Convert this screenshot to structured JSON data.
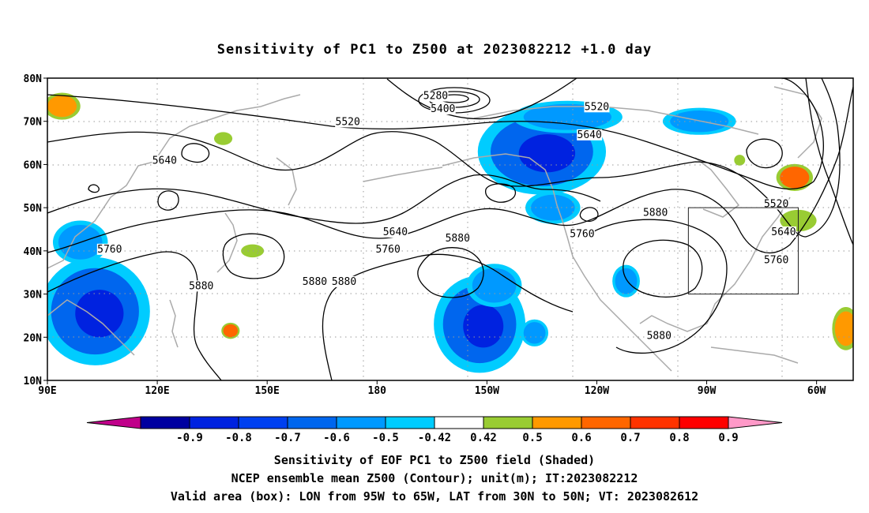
{
  "title": "Sensitivity of PC1 to Z500 at 2023082212 +1.0 day",
  "map": {
    "lon_range": [
      90,
      310
    ],
    "lat_range": [
      10,
      80
    ],
    "lon_ticks": [
      "90E",
      "120E",
      "150E",
      "180",
      "150W",
      "120W",
      "90W",
      "60W"
    ],
    "lat_ticks": [
      "80N",
      "70N",
      "60N",
      "50N",
      "40N",
      "30N",
      "20N",
      "10N"
    ],
    "grid": "dotted, every 30 deg lon and 10 deg lat",
    "valid_box": {
      "lon_west": -95,
      "lon_east": -65,
      "lat_south": 30,
      "lat_north": 50
    }
  },
  "contours": {
    "labels": [
      {
        "text": "5280",
        "lon": 196,
        "lat": 75.5
      },
      {
        "text": "5400",
        "lon": 198,
        "lat": 72.5
      },
      {
        "text": "5520",
        "lon": 172,
        "lat": 69.5
      },
      {
        "text": "5520",
        "lon": 240,
        "lat": 73
      },
      {
        "text": "5640",
        "lon": 238,
        "lat": 66.5
      },
      {
        "text": "5640",
        "lon": 122,
        "lat": 60.5
      },
      {
        "text": "5640",
        "lon": 185,
        "lat": 44
      },
      {
        "text": "5760",
        "lon": 183,
        "lat": 40
      },
      {
        "text": "5760",
        "lon": 107,
        "lat": 40
      },
      {
        "text": "5760",
        "lon": 236,
        "lat": 43.5
      },
      {
        "text": "5880",
        "lon": 202,
        "lat": 42.5
      },
      {
        "text": "5880",
        "lon": 256,
        "lat": 48.5
      },
      {
        "text": "5880",
        "lon": 163,
        "lat": 32.5
      },
      {
        "text": "5880",
        "lon": 171,
        "lat": 32.5
      },
      {
        "text": "5880",
        "lon": 132,
        "lat": 31.5
      },
      {
        "text": "5880",
        "lon": 257,
        "lat": 20
      },
      {
        "text": "5520",
        "lon": 289,
        "lat": 50.5
      },
      {
        "text": "5640",
        "lon": 291,
        "lat": 44
      },
      {
        "text": "5760",
        "lon": 289,
        "lat": 37.5
      }
    ]
  },
  "shading": {
    "negative": [
      {
        "lon": 225,
        "lat": 63,
        "rx": 14,
        "ry": 8,
        "level": -0.6
      },
      {
        "lon": 232,
        "lat": 71,
        "rx": 12,
        "ry": 3,
        "level": -0.5
      },
      {
        "lon": 268,
        "lat": 70,
        "rx": 8,
        "ry": 2.5,
        "level": -0.5
      },
      {
        "lon": 208,
        "lat": 23,
        "rx": 10,
        "ry": 9,
        "level": -0.6
      },
      {
        "lon": 212,
        "lat": 32,
        "rx": 6,
        "ry": 4,
        "level": -0.5
      },
      {
        "lon": 103,
        "lat": 26,
        "rx": 12,
        "ry": 10,
        "level": -0.6
      },
      {
        "lon": 99,
        "lat": 42,
        "rx": 6,
        "ry": 4,
        "level": -0.5
      },
      {
        "lon": 248,
        "lat": 33,
        "rx": 3,
        "ry": 3,
        "level": -0.5
      },
      {
        "lon": 228,
        "lat": 50,
        "rx": 6,
        "ry": 3,
        "level": -0.5
      },
      {
        "lon": 223,
        "lat": 21,
        "rx": 3,
        "ry": 2.5,
        "level": -0.5
      }
    ],
    "positive": [
      {
        "lon": 94,
        "lat": 73.5,
        "rx": 4,
        "ry": 2.5,
        "level": 0.6
      },
      {
        "lon": 294,
        "lat": 57,
        "rx": 4,
        "ry": 2.5,
        "level": 0.7
      },
      {
        "lon": 295,
        "lat": 47,
        "rx": 4,
        "ry": 2,
        "level": 0.5
      },
      {
        "lon": 308,
        "lat": 22,
        "rx": 3,
        "ry": 4,
        "level": 0.6
      },
      {
        "lon": 140,
        "lat": 21.5,
        "rx": 2,
        "ry": 1.5,
        "level": 0.7
      },
      {
        "lon": 138,
        "lat": 66,
        "rx": 2,
        "ry": 1.2,
        "level": 0.5
      },
      {
        "lon": 146,
        "lat": 40,
        "rx": 2.5,
        "ry": 1.2,
        "level": 0.5
      },
      {
        "lon": 279,
        "lat": 61,
        "rx": 1.2,
        "ry": 1,
        "level": 0.5
      }
    ]
  },
  "colorbar": {
    "labels": [
      "-0.9",
      "-0.8",
      "-0.7",
      "-0.6",
      "-0.5",
      "-0.42",
      "0.42",
      "0.5",
      "0.6",
      "0.7",
      "0.8",
      "0.9"
    ],
    "colors": [
      "#c0008a",
      "#0000a0",
      "#0022e0",
      "#0040f0",
      "#0066ee",
      "#0099ff",
      "#00ccff",
      "#ffffff",
      "#99cc33",
      "#ff9900",
      "#ff6600",
      "#ff3300",
      "#ff0000",
      "#ff99c8"
    ]
  },
  "captions": [
    "Sensitivity of EOF PC1 to Z500 field (Shaded)",
    "NCEP ensemble mean Z500 (Contour); unit(m); IT:2023082212",
    "Valid area (box): LON from 95W to 65W, LAT from 30N to 50N; VT: 2023082612"
  ]
}
